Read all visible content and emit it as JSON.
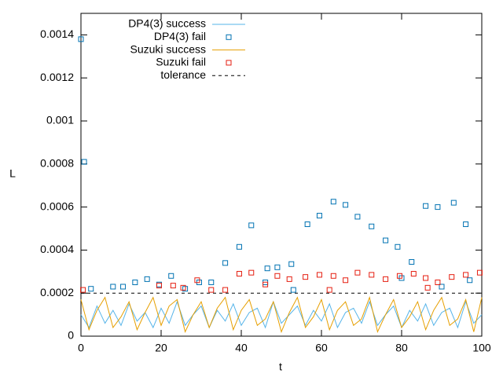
{
  "chart_data": {
    "type": "line",
    "xlabel": "t",
    "ylabel": "L",
    "xlim": [
      0,
      100
    ],
    "ylim": [
      0,
      0.0015
    ],
    "xticks": [
      0,
      20,
      40,
      60,
      80,
      100
    ],
    "yticks": [
      0,
      0.0002,
      0.0004,
      0.0006,
      0.0008,
      0.001,
      0.0012,
      0.0014
    ],
    "legend": "top-left",
    "series": [
      {
        "name": "DP4(3) success",
        "style": "line",
        "color": "#56b4e9",
        "x": [
          0,
          2,
          4,
          6,
          8,
          10,
          12,
          14,
          16,
          18,
          20,
          22,
          24,
          26,
          28,
          30,
          32,
          34,
          36,
          38,
          40,
          42,
          44,
          46,
          48,
          50,
          52,
          54,
          56,
          58,
          60,
          62,
          64,
          66,
          68,
          70,
          72,
          74,
          76,
          78,
          80,
          82,
          84,
          86,
          88,
          90,
          92,
          94,
          96,
          98,
          100
        ],
        "values": [
          0.0001,
          4e-05,
          0.00014,
          6e-05,
          0.00012,
          5e-05,
          0.00015,
          7e-05,
          0.00011,
          4e-05,
          0.00013,
          6e-05,
          0.00016,
          5e-05,
          0.0001,
          0.00014,
          4e-05,
          0.00012,
          7e-05,
          0.00015,
          5e-05,
          0.00011,
          0.00013,
          4e-05,
          0.00016,
          6e-05,
          0.0001,
          0.00014,
          5e-05,
          0.00012,
          7e-05,
          0.00015,
          4e-05,
          0.00011,
          0.00013,
          6e-05,
          0.00016,
          5e-05,
          0.0001,
          0.00014,
          4e-05,
          0.00012,
          7e-05,
          0.00015,
          5e-05,
          0.00011,
          0.00013,
          4e-05,
          0.00016,
          6e-05,
          0.0001
        ]
      },
      {
        "name": "DP4(3) fail",
        "style": "points",
        "color": "#0072b2",
        "x": [
          0,
          0.8,
          2.5,
          8,
          10.5,
          13.5,
          16.5,
          19.5,
          22.5,
          26,
          29.5,
          32.5,
          36,
          39.5,
          42.5,
          46,
          46.5,
          49,
          52.5,
          53,
          56.5,
          59.5,
          63,
          66,
          69,
          72.5,
          76,
          79,
          80,
          82.5,
          86,
          89,
          90,
          93,
          96,
          97
        ],
        "values": [
          0.00138,
          0.00081,
          0.00022,
          0.00023,
          0.00023,
          0.00025,
          0.000265,
          0.00024,
          0.00028,
          0.00022,
          0.00025,
          0.00025,
          0.00034,
          0.000415,
          0.000515,
          0.00025,
          0.000315,
          0.00032,
          0.000335,
          0.000215,
          0.00052,
          0.00056,
          0.000625,
          0.00061,
          0.000555,
          0.00051,
          0.000445,
          0.000415,
          0.00027,
          0.000345,
          0.000605,
          0.0006,
          0.00023,
          0.00062,
          0.00052,
          0.00026
        ]
      },
      {
        "name": "Suzuki success",
        "style": "line",
        "color": "#e69f00",
        "x": [
          0,
          2,
          4,
          6,
          8,
          10,
          12,
          14,
          16,
          18,
          20,
          22,
          24,
          26,
          28,
          30,
          32,
          34,
          36,
          38,
          40,
          42,
          44,
          46,
          48,
          50,
          52,
          54,
          56,
          58,
          60,
          62,
          64,
          66,
          68,
          70,
          72,
          74,
          76,
          78,
          80,
          82,
          84,
          86,
          88,
          90,
          92,
          94,
          96,
          98,
          100
        ],
        "values": [
          0.00017,
          3e-05,
          0.00012,
          0.00018,
          4e-05,
          9e-05,
          0.00016,
          3e-05,
          0.00011,
          0.00018,
          5e-05,
          0.00014,
          0.00017,
          2e-05,
          0.0001,
          0.00016,
          4e-05,
          0.00013,
          0.00018,
          3e-05,
          0.00012,
          0.00017,
          5e-05,
          8e-05,
          0.00016,
          2e-05,
          0.00011,
          0.00018,
          4e-05,
          9e-05,
          0.00017,
          3e-05,
          0.00012,
          0.00016,
          5e-05,
          8e-05,
          0.00018,
          2e-05,
          0.0001,
          0.00017,
          4e-05,
          9e-05,
          0.00016,
          3e-05,
          0.00012,
          0.00018,
          5e-05,
          8e-05,
          0.00017,
          2e-05,
          0.00018
        ]
      },
      {
        "name": "Suzuki fail",
        "style": "points",
        "color": "#e51e10",
        "x": [
          0.5,
          19.5,
          23,
          25.5,
          29,
          32.5,
          36,
          39.5,
          42.5,
          46,
          49,
          52,
          56,
          59.5,
          62,
          63,
          66,
          69,
          72.5,
          76,
          79.5,
          83,
          86,
          86.5,
          89,
          92.5,
          96,
          99.5
        ],
        "values": [
          0.000215,
          0.000235,
          0.000235,
          0.000225,
          0.00026,
          0.000215,
          0.000215,
          0.00029,
          0.000295,
          0.00024,
          0.00028,
          0.000265,
          0.000275,
          0.000285,
          0.000215,
          0.00028,
          0.00026,
          0.000295,
          0.000285,
          0.000265,
          0.00028,
          0.00029,
          0.00027,
          0.000225,
          0.00025,
          0.000275,
          0.000285,
          0.000295
        ]
      },
      {
        "name": "tolerance",
        "style": "hline",
        "color": "#000000",
        "value": 0.0002
      }
    ]
  }
}
